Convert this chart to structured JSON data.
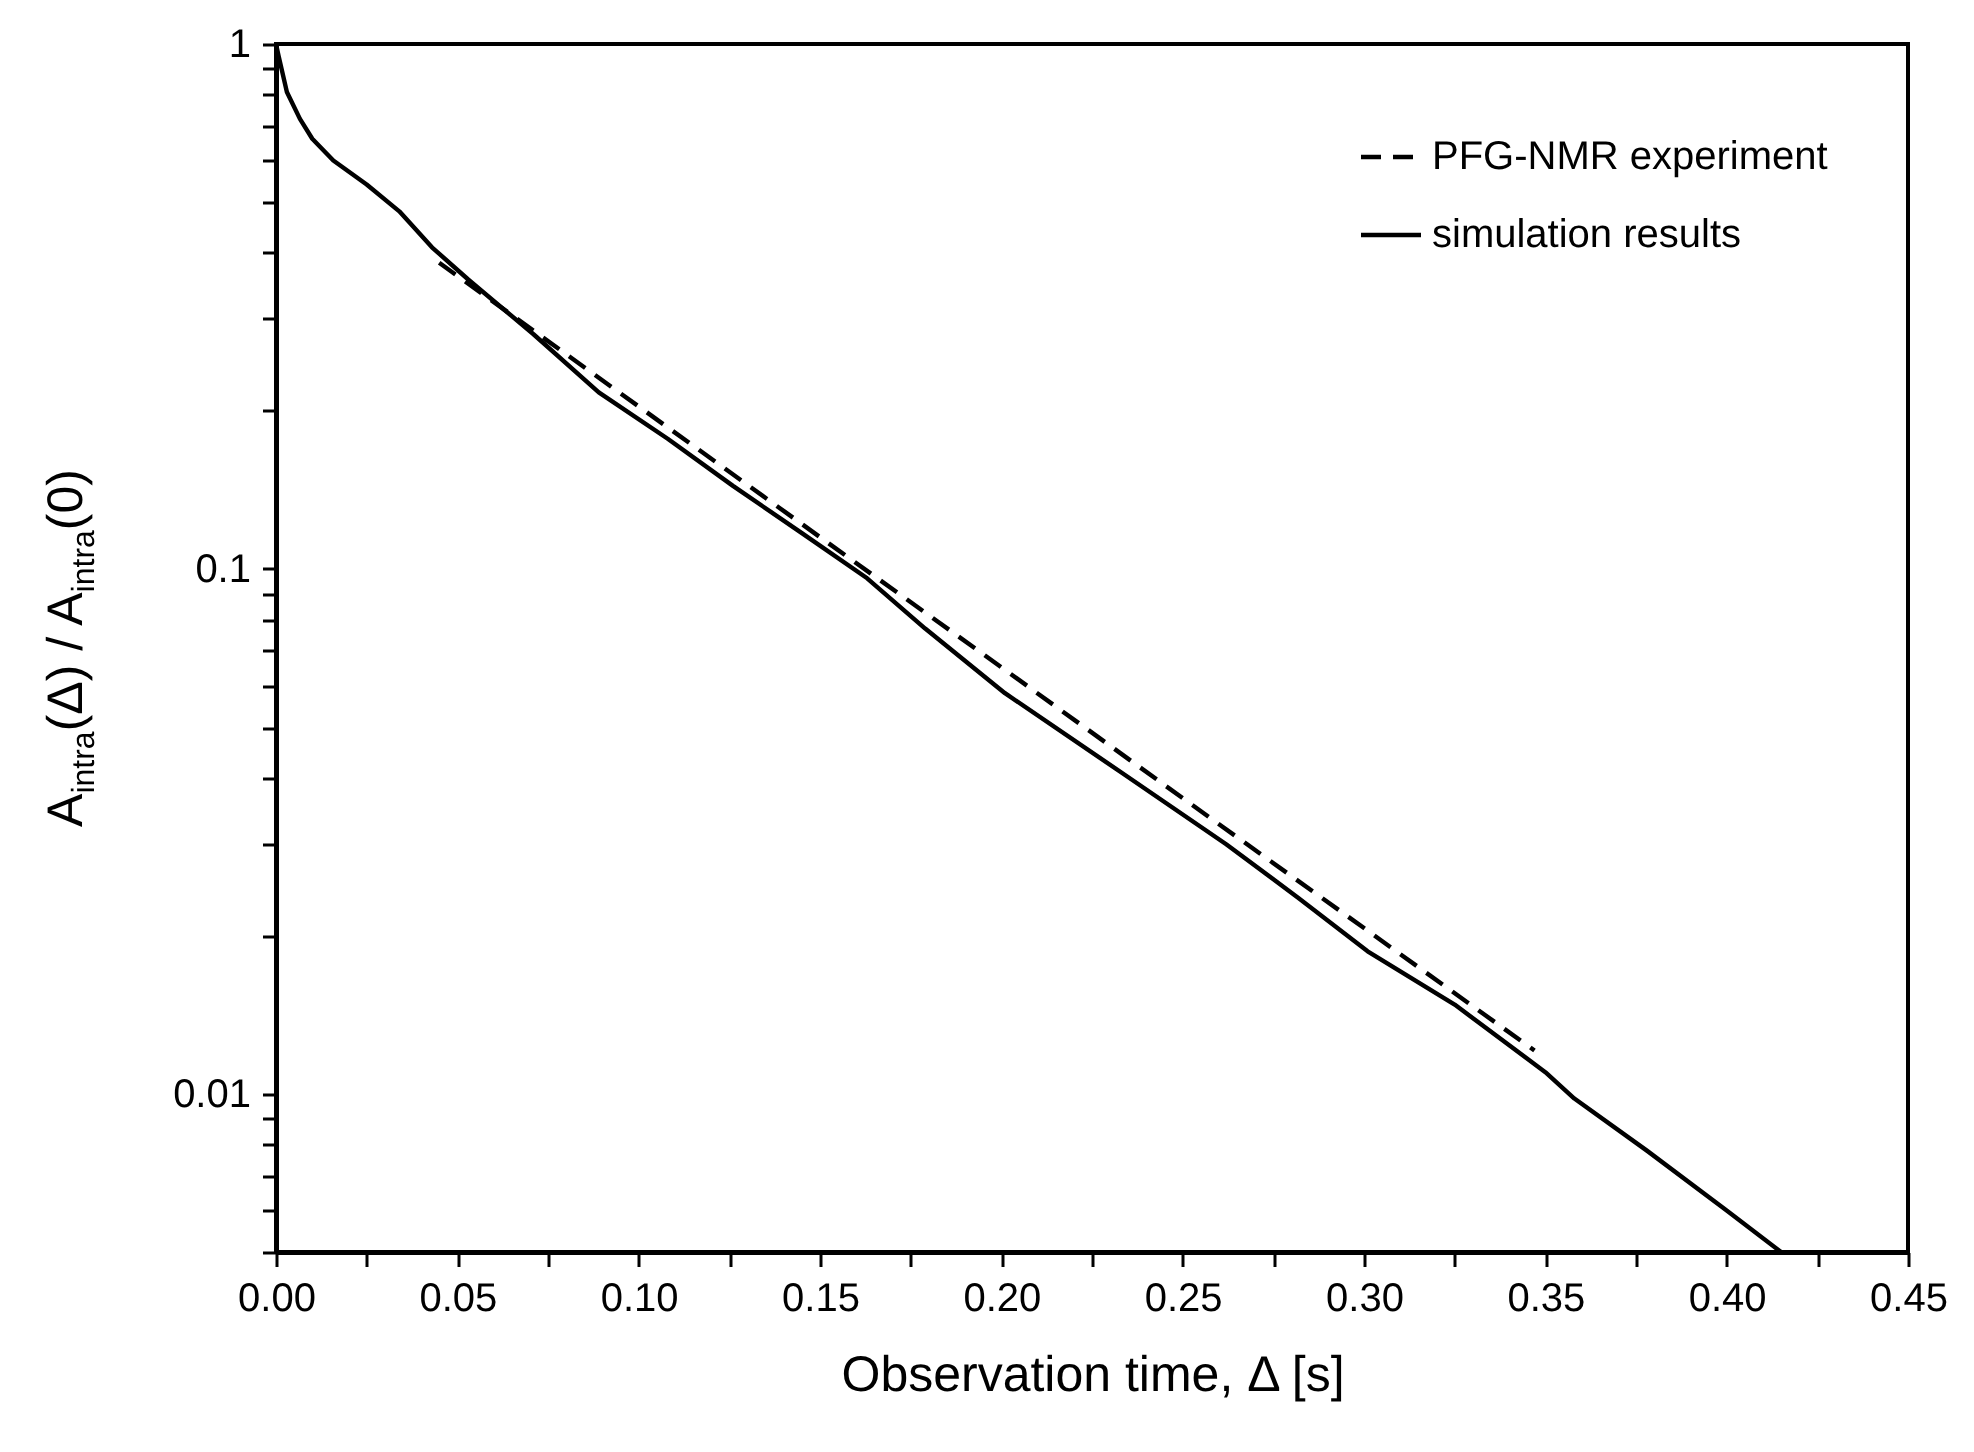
{
  "chart_data": {
    "type": "line",
    "xlabel": "Observation time, Δ [s]",
    "ylabel": "A$_{intra}$(Δ) / A$_{intra}$(0)",
    "log": "y",
    "xlim": [
      0,
      0.45
    ],
    "ylim": [
      0.005,
      1
    ],
    "xticks": [
      {
        "value": 0,
        "label": "0.00"
      },
      {
        "value": 0.025,
        "label": null
      },
      {
        "value": 0.05,
        "label": "0.05"
      },
      {
        "value": 0.075,
        "label": null
      },
      {
        "value": 0.1,
        "label": "0.10"
      },
      {
        "value": 0.125,
        "label": null
      },
      {
        "value": 0.15,
        "label": "0.15"
      },
      {
        "value": 0.175,
        "label": null
      },
      {
        "value": 0.2,
        "label": "0.20"
      },
      {
        "value": 0.225,
        "label": null
      },
      {
        "value": 0.25,
        "label": "0.25"
      },
      {
        "value": 0.275,
        "label": null
      },
      {
        "value": 0.3,
        "label": "0.30"
      },
      {
        "value": 0.325,
        "label": null
      },
      {
        "value": 0.35,
        "label": "0.35"
      },
      {
        "value": 0.375,
        "label": null
      },
      {
        "value": 0.4,
        "label": "0.40"
      },
      {
        "value": 0.425,
        "label": null
      },
      {
        "value": 0.45,
        "label": "0.45"
      }
    ],
    "yticks": [
      {
        "value": 0.005,
        "label": null
      },
      {
        "value": 0.006,
        "label": null
      },
      {
        "value": 0.007,
        "label": null
      },
      {
        "value": 0.008,
        "label": null
      },
      {
        "value": 0.009,
        "label": null
      },
      0.01,
      {
        "value": 0.02,
        "label": null
      },
      {
        "value": 0.03,
        "label": null
      },
      {
        "value": 0.04,
        "label": null
      },
      {
        "value": 0.05,
        "label": null
      },
      {
        "value": 0.06,
        "label": null
      },
      {
        "value": 0.07,
        "label": null
      },
      {
        "value": 0.08,
        "label": null
      },
      {
        "value": 0.09,
        "label": null
      },
      0.1,
      {
        "value": 0.2,
        "label": null
      },
      {
        "value": 0.3,
        "label": null
      },
      {
        "value": 0.4,
        "label": null
      },
      {
        "value": 0.5,
        "label": null
      },
      {
        "value": 0.6,
        "label": null
      },
      {
        "value": 0.7,
        "label": null
      },
      {
        "value": 0.8,
        "label": null
      },
      {
        "value": 0.9,
        "label": null
      },
      1
    ],
    "grid": false,
    "legend": "top right",
    "series": [
      {
        "name": "PFG-NMR experiment",
        "color": "#000000",
        "line_style": "dashed",
        "x": [
          0.045,
          0.1,
          0.15,
          0.2,
          0.25,
          0.3,
          0.347
        ],
        "values": [
          0.383,
          0.204,
          0.115,
          0.065,
          0.0366,
          0.0207,
          0.0121
        ]
      },
      {
        "name": "simulation results",
        "color": "#000000",
        "line_style": "solid",
        "x": [
          0,
          0.0007,
          0.003,
          0.0066,
          0.01,
          0.0158,
          0.025,
          0.034,
          0.043,
          0.053,
          0.071,
          0.089,
          0.108,
          0.126,
          0.145,
          0.163,
          0.179,
          0.201,
          0.233,
          0.262,
          0.282,
          0.301,
          0.325,
          0.35,
          0.358,
          0.378,
          0.4,
          0.415
        ],
        "values": [
          1,
          0.95,
          0.81,
          0.72,
          0.66,
          0.6,
          0.54,
          0.48,
          0.41,
          0.356,
          0.28,
          0.217,
          0.177,
          0.144,
          0.117,
          0.096,
          0.077,
          0.058,
          0.041,
          0.0299,
          0.0236,
          0.0187,
          0.0148,
          0.011,
          0.0098,
          0.0078,
          0.006,
          0.005
        ]
      }
    ]
  }
}
